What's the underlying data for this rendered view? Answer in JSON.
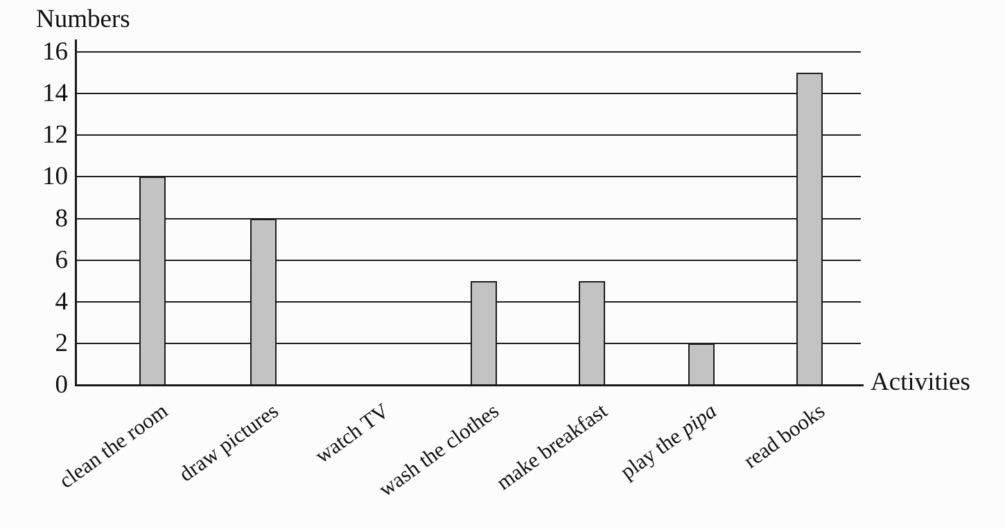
{
  "chart_data": {
    "type": "bar",
    "title": "",
    "ylabel": "Numbers",
    "xlabel": "Activities",
    "categories": [
      {
        "segments": [
          {
            "text": "clean the room",
            "italic": false
          }
        ]
      },
      {
        "segments": [
          {
            "text": "draw pictures",
            "italic": false
          }
        ]
      },
      {
        "segments": [
          {
            "text": "watch TV",
            "italic": false
          }
        ]
      },
      {
        "segments": [
          {
            "text": "wash the clothes",
            "italic": false
          }
        ]
      },
      {
        "segments": [
          {
            "text": "make breakfast",
            "italic": false
          }
        ]
      },
      {
        "segments": [
          {
            "text": "play the ",
            "italic": false
          },
          {
            "text": "pipa",
            "italic": true
          }
        ]
      },
      {
        "segments": [
          {
            "text": "read books",
            "italic": false
          }
        ]
      }
    ],
    "values": [
      10,
      8,
      0,
      5,
      5,
      2,
      15
    ],
    "ylim": [
      0,
      16
    ],
    "ytick_step": 2,
    "yticks": [
      0,
      2,
      4,
      6,
      8,
      10,
      12,
      14,
      16
    ],
    "grid": true,
    "legend": false
  },
  "colors": {
    "bar_fill": "#c9c9c9",
    "bar_stipple": "#b7b7b7",
    "bar_border": "#1c1c1c",
    "axis": "#1a1a1a",
    "text": "#111111",
    "background": "#fcfcfc"
  }
}
